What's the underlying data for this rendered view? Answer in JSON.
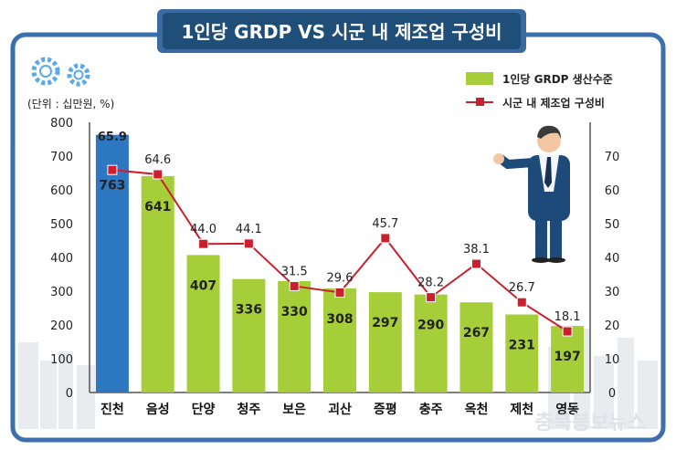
{
  "header": {
    "title": "1인당 GRDP VS 시군 내 제조업 구성비"
  },
  "watermark": "충북봉보뉴스",
  "chart_data": {
    "type": "bar+line",
    "unit_label": "(단위 : 십만원, %)",
    "categories": [
      "진천",
      "음성",
      "단양",
      "청주",
      "보은",
      "괴산",
      "증평",
      "충주",
      "옥천",
      "제천",
      "영동"
    ],
    "series": [
      {
        "name": "1인당 GRDP 생산수준",
        "type": "bar",
        "axis": "left",
        "values": [
          763,
          641,
          407,
          336,
          330,
          308,
          297,
          290,
          267,
          231,
          197
        ],
        "color": "#a6ce39",
        "highlight_color": "#2e78c2"
      },
      {
        "name": "시군 내 제조업 구성비",
        "type": "line",
        "axis": "right",
        "values": [
          65.9,
          64.6,
          44.0,
          44.1,
          31.5,
          29.6,
          45.7,
          28.2,
          38.1,
          26.7,
          18.1
        ],
        "color": "#cc1f2e"
      }
    ],
    "value_labels_bar": [
      "763",
      "641",
      "407",
      "336",
      "330",
      "308",
      "297",
      "290",
      "267",
      "231",
      "197"
    ],
    "value_labels_line": [
      "65.9",
      "64.6",
      "44.0",
      "44.1",
      "31.5",
      "29.6",
      "45.7",
      "28.2",
      "38.1",
      "26.7",
      "18.1"
    ],
    "y_left": {
      "min": 0,
      "max": 800,
      "ticks": [
        0,
        100,
        200,
        300,
        400,
        500,
        600,
        700,
        800
      ]
    },
    "y_right": {
      "min": 0,
      "max": 80,
      "ticks": [
        0,
        10,
        20,
        30,
        40,
        50,
        60,
        70
      ]
    },
    "legend_position": "top-right",
    "grid": false
  },
  "colors": {
    "header_bg": "#1f4e79",
    "frame": "#3c6fae",
    "bar": "#a6ce39",
    "bar_highlight": "#2e78c2",
    "line": "#cc1f2e",
    "highlight_label": "#ffe14d"
  },
  "icons": [
    "gear-icon",
    "businessman-illustration",
    "city-skyline-decoration"
  ]
}
